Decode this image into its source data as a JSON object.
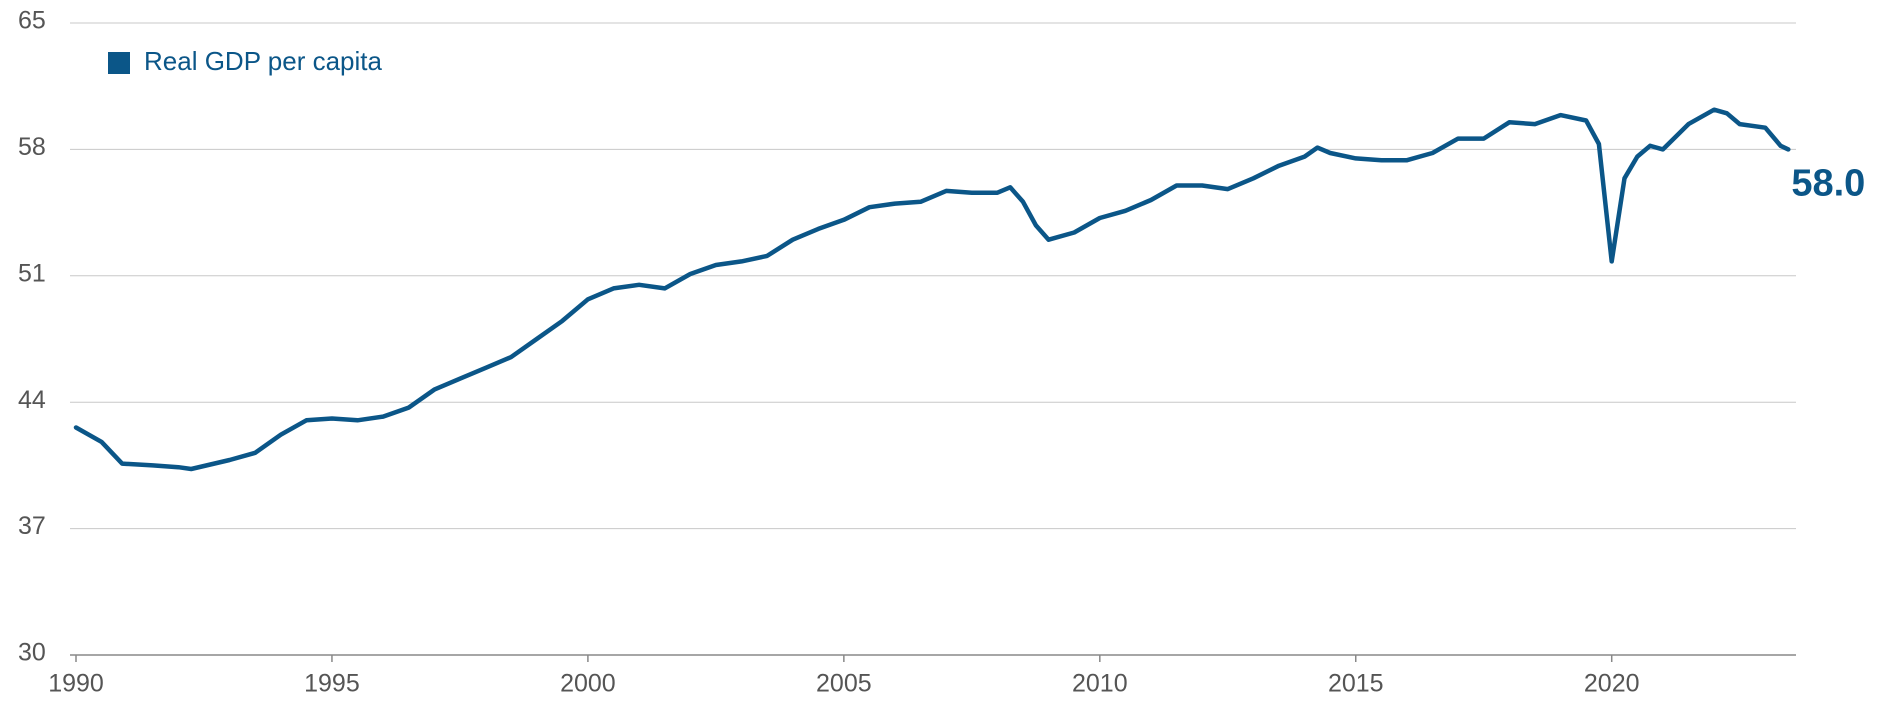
{
  "chart_data": {
    "type": "line",
    "x": [
      1990.0,
      1990.5,
      1990.9,
      1991.5,
      1992.0,
      1992.25,
      1993.0,
      1993.5,
      1994.0,
      1994.5,
      1995.0,
      1995.5,
      1996.0,
      1996.5,
      1997.0,
      1997.5,
      1998.0,
      1998.5,
      1999.0,
      1999.5,
      2000.0,
      2000.5,
      2001.0,
      2001.5,
      2002.0,
      2002.5,
      2003.0,
      2003.5,
      2004.0,
      2004.5,
      2005.0,
      2005.5,
      2006.0,
      2006.5,
      2007.0,
      2007.5,
      2008.0,
      2008.25,
      2008.5,
      2008.75,
      2009.0,
      2009.5,
      2010.0,
      2010.5,
      2011.0,
      2011.5,
      2012.0,
      2012.5,
      2013.0,
      2013.5,
      2014.0,
      2014.25,
      2014.5,
      2015.0,
      2015.5,
      2016.0,
      2016.5,
      2017.0,
      2017.5,
      2018.0,
      2018.5,
      2019.0,
      2019.5,
      2019.75,
      2020.0,
      2020.25,
      2020.5,
      2020.75,
      2021.0,
      2021.5,
      2022.0,
      2022.25,
      2022.5,
      2023.0,
      2023.3,
      2023.45
    ],
    "series": [
      {
        "name": "Real GDP per capita",
        "color": "#0b5688",
        "values": [
          42.6,
          41.8,
          40.6,
          40.5,
          40.4,
          40.3,
          40.8,
          41.2,
          42.2,
          43.0,
          43.1,
          43.0,
          43.2,
          43.7,
          44.7,
          45.3,
          45.9,
          46.5,
          47.5,
          48.5,
          49.7,
          50.3,
          50.5,
          50.3,
          51.1,
          51.6,
          51.8,
          52.1,
          53.0,
          53.6,
          54.1,
          54.8,
          55.0,
          55.1,
          55.7,
          55.6,
          55.6,
          55.9,
          55.1,
          53.8,
          53.0,
          53.4,
          54.2,
          54.6,
          55.2,
          56.0,
          56.0,
          55.8,
          56.4,
          57.1,
          57.6,
          58.1,
          57.8,
          57.5,
          57.4,
          57.4,
          57.8,
          58.6,
          58.6,
          59.5,
          59.4,
          59.9,
          59.6,
          58.3,
          51.8,
          56.4,
          57.6,
          58.2,
          58.0,
          59.4,
          60.2,
          60.0,
          59.4,
          59.2,
          58.2,
          58.0
        ],
        "value_labels": [
          null,
          null,
          null,
          null,
          null,
          null,
          null,
          null,
          null,
          null,
          null,
          null,
          null,
          null,
          null,
          null,
          null,
          null,
          null,
          null,
          null,
          null,
          null,
          null,
          null,
          null,
          null,
          null,
          null,
          null,
          null,
          null,
          null,
          null,
          null,
          null,
          null,
          null,
          null,
          null,
          null,
          null,
          null,
          null,
          null,
          null,
          null,
          null,
          null,
          null,
          null,
          null,
          null,
          null,
          null,
          null,
          null,
          null,
          null,
          null,
          null,
          null,
          null,
          null,
          null,
          null,
          null,
          null,
          null,
          null,
          null,
          null,
          null,
          null,
          null,
          "58.0"
        ]
      }
    ],
    "xlim": [
      1990,
      2023.6
    ],
    "xticks": [
      1990,
      1995,
      2000,
      2005,
      2010,
      2015,
      2020
    ],
    "ylim": [
      30,
      65
    ],
    "yticks": [
      30,
      37,
      44,
      51,
      58,
      65
    ],
    "grid": true,
    "legend": "top-left"
  }
}
